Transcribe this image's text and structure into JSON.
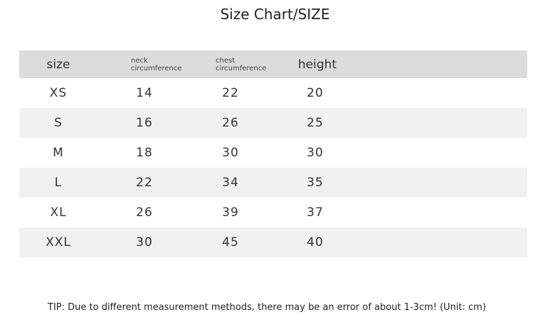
{
  "title": "Size Chart/SIZE",
  "headers": {
    "size": "size",
    "neck_1": "neck",
    "neck_2": "circumference",
    "chest_1": "chest",
    "chest_2": "circumference",
    "height": "height"
  },
  "rows": [
    {
      "size": "XS",
      "neck": "14",
      "chest": "22",
      "height": "20"
    },
    {
      "size": "S",
      "neck": "16",
      "chest": "26",
      "height": "25"
    },
    {
      "size": "M",
      "neck": "18",
      "chest": "30",
      "height": "30"
    },
    {
      "size": "L",
      "neck": "22",
      "chest": "34",
      "height": "35"
    },
    {
      "size": "XL",
      "neck": "26",
      "chest": "39",
      "height": "37"
    },
    {
      "size": "XXL",
      "neck": "30",
      "chest": "45",
      "height": "40"
    }
  ],
  "tip": "TIP: Due to different measurement methods, there may be an error of about 1-3cm! (Unit: cm)"
}
